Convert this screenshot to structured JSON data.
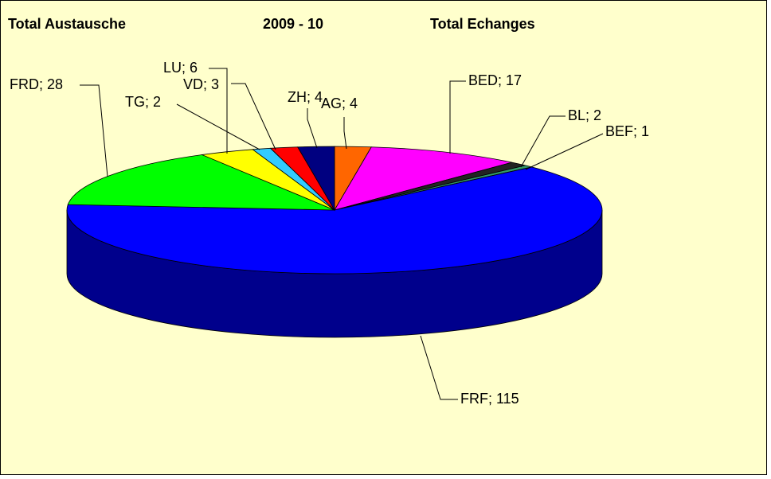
{
  "chart_data": {
    "type": "pie3d",
    "title": [
      "Total Austausche",
      "2009 - 10",
      "Total Echanges"
    ],
    "categories": [
      "AG",
      "BED",
      "BL",
      "BEF",
      "FRF",
      "FRD",
      "LU",
      "TG",
      "VD",
      "ZH"
    ],
    "values": [
      4,
      17,
      2,
      1,
      115,
      28,
      6,
      2,
      3,
      4
    ],
    "value_labels": [
      "AG; 4",
      "BED; 17",
      "BL; 2",
      "BEF; 1",
      "FRF; 115",
      "FRD; 28",
      "LU; 6",
      "TG; 2",
      "VD; 3",
      "ZH; 4"
    ],
    "colors": [
      "#ff6600",
      "#ff00ff",
      "#222222",
      "#339966",
      "#0000ff",
      "#00ff00",
      "#ffff00",
      "#33ccff",
      "#ff0000",
      "#000080"
    ]
  }
}
